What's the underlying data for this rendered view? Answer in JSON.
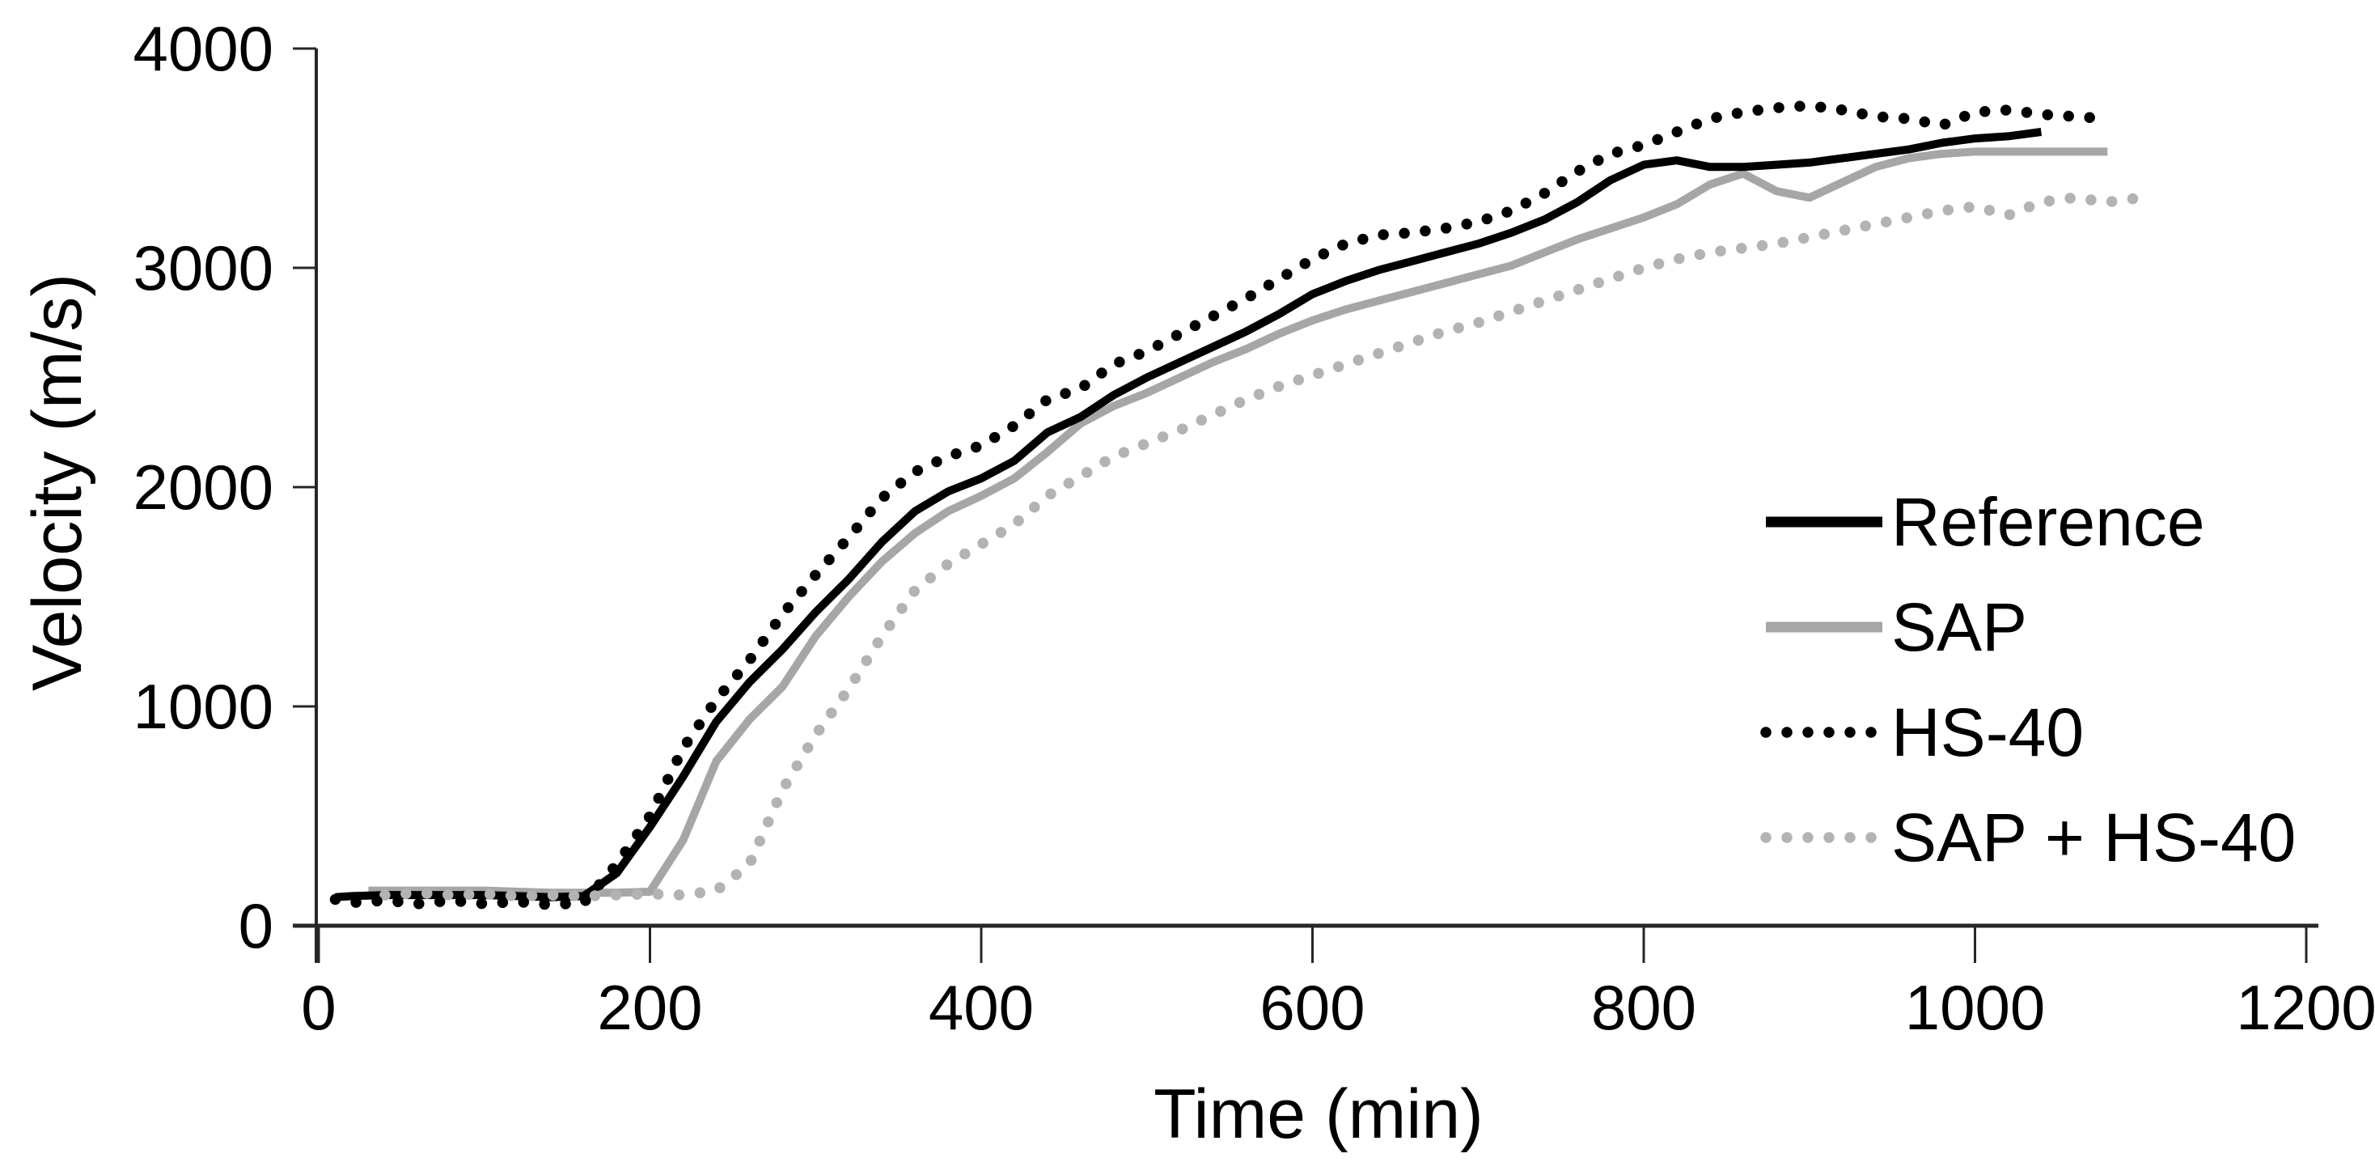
{
  "figure": {
    "background_color": "#ffffff",
    "axis_color": "#262626",
    "text_color": "#000000"
  },
  "chart_data": {
    "type": "line",
    "title": "",
    "xlabel": "Time (min)",
    "ylabel": "Velocity (m/s)",
    "xlim": [
      0,
      1200
    ],
    "ylim": [
      0,
      4000
    ],
    "xticks": [
      0,
      200,
      400,
      600,
      800,
      1000,
      1200
    ],
    "yticks": [
      0,
      1000,
      2000,
      3000,
      4000
    ],
    "grid": false,
    "legend_position": "right-inside",
    "series": [
      {
        "name": "Reference",
        "color": "#000000",
        "line_style": "solid",
        "line_width": 10,
        "points": [
          [
            10,
            130
          ],
          [
            20,
            135
          ],
          [
            40,
            140
          ],
          [
            60,
            140
          ],
          [
            80,
            140
          ],
          [
            100,
            140
          ],
          [
            120,
            135
          ],
          [
            140,
            130
          ],
          [
            160,
            135
          ],
          [
            180,
            240
          ],
          [
            200,
            450
          ],
          [
            220,
            680
          ],
          [
            240,
            930
          ],
          [
            260,
            1110
          ],
          [
            280,
            1260
          ],
          [
            300,
            1430
          ],
          [
            320,
            1580
          ],
          [
            340,
            1750
          ],
          [
            360,
            1890
          ],
          [
            380,
            1980
          ],
          [
            400,
            2040
          ],
          [
            420,
            2120
          ],
          [
            440,
            2250
          ],
          [
            460,
            2320
          ],
          [
            480,
            2420
          ],
          [
            500,
            2500
          ],
          [
            520,
            2570
          ],
          [
            540,
            2640
          ],
          [
            560,
            2710
          ],
          [
            580,
            2790
          ],
          [
            600,
            2880
          ],
          [
            620,
            2940
          ],
          [
            640,
            2990
          ],
          [
            660,
            3030
          ],
          [
            680,
            3070
          ],
          [
            700,
            3110
          ],
          [
            720,
            3160
          ],
          [
            740,
            3220
          ],
          [
            760,
            3300
          ],
          [
            780,
            3400
          ],
          [
            800,
            3470
          ],
          [
            820,
            3490
          ],
          [
            840,
            3460
          ],
          [
            860,
            3460
          ],
          [
            880,
            3470
          ],
          [
            900,
            3480
          ],
          [
            920,
            3500
          ],
          [
            940,
            3520
          ],
          [
            960,
            3540
          ],
          [
            980,
            3570
          ],
          [
            1000,
            3590
          ],
          [
            1020,
            3600
          ],
          [
            1040,
            3620
          ]
        ]
      },
      {
        "name": "SAP",
        "color": "#a6a6a6",
        "line_style": "solid",
        "line_width": 10,
        "points": [
          [
            30,
            160
          ],
          [
            60,
            160
          ],
          [
            80,
            160
          ],
          [
            100,
            160
          ],
          [
            120,
            155
          ],
          [
            140,
            150
          ],
          [
            160,
            150
          ],
          [
            180,
            150
          ],
          [
            200,
            155
          ],
          [
            220,
            390
          ],
          [
            240,
            750
          ],
          [
            260,
            940
          ],
          [
            280,
            1090
          ],
          [
            300,
            1320
          ],
          [
            320,
            1500
          ],
          [
            340,
            1660
          ],
          [
            360,
            1790
          ],
          [
            380,
            1890
          ],
          [
            400,
            1960
          ],
          [
            420,
            2040
          ],
          [
            440,
            2160
          ],
          [
            460,
            2290
          ],
          [
            480,
            2370
          ],
          [
            500,
            2430
          ],
          [
            520,
            2500
          ],
          [
            540,
            2570
          ],
          [
            560,
            2630
          ],
          [
            580,
            2700
          ],
          [
            600,
            2760
          ],
          [
            620,
            2810
          ],
          [
            640,
            2850
          ],
          [
            660,
            2890
          ],
          [
            680,
            2930
          ],
          [
            700,
            2970
          ],
          [
            720,
            3010
          ],
          [
            740,
            3070
          ],
          [
            760,
            3130
          ],
          [
            780,
            3180
          ],
          [
            800,
            3230
          ],
          [
            820,
            3290
          ],
          [
            840,
            3380
          ],
          [
            860,
            3430
          ],
          [
            880,
            3350
          ],
          [
            900,
            3320
          ],
          [
            920,
            3390
          ],
          [
            940,
            3460
          ],
          [
            960,
            3500
          ],
          [
            980,
            3520
          ],
          [
            1000,
            3530
          ],
          [
            1020,
            3530
          ],
          [
            1040,
            3530
          ],
          [
            1060,
            3530
          ],
          [
            1080,
            3530
          ]
        ]
      },
      {
        "name": "HS-40",
        "color": "#000000",
        "line_style": "dotted",
        "dot_size": 13.5,
        "dot_spacing": 26,
        "points": [
          [
            10,
            120
          ],
          [
            20,
            105
          ],
          [
            40,
            115
          ],
          [
            60,
            100
          ],
          [
            80,
            115
          ],
          [
            100,
            100
          ],
          [
            120,
            110
          ],
          [
            140,
            95
          ],
          [
            160,
            105
          ],
          [
            180,
            280
          ],
          [
            200,
            500
          ],
          [
            220,
            810
          ],
          [
            240,
            1030
          ],
          [
            260,
            1210
          ],
          [
            280,
            1420
          ],
          [
            300,
            1600
          ],
          [
            320,
            1770
          ],
          [
            340,
            1950
          ],
          [
            360,
            2070
          ],
          [
            380,
            2140
          ],
          [
            400,
            2190
          ],
          [
            420,
            2280
          ],
          [
            440,
            2400
          ],
          [
            460,
            2450
          ],
          [
            480,
            2560
          ],
          [
            500,
            2620
          ],
          [
            520,
            2700
          ],
          [
            540,
            2780
          ],
          [
            560,
            2860
          ],
          [
            580,
            2950
          ],
          [
            600,
            3040
          ],
          [
            620,
            3110
          ],
          [
            640,
            3150
          ],
          [
            660,
            3160
          ],
          [
            680,
            3180
          ],
          [
            700,
            3210
          ],
          [
            720,
            3260
          ],
          [
            740,
            3340
          ],
          [
            760,
            3440
          ],
          [
            780,
            3520
          ],
          [
            800,
            3560
          ],
          [
            820,
            3620
          ],
          [
            840,
            3680
          ],
          [
            860,
            3710
          ],
          [
            880,
            3730
          ],
          [
            900,
            3740
          ],
          [
            920,
            3720
          ],
          [
            940,
            3690
          ],
          [
            960,
            3680
          ],
          [
            980,
            3650
          ],
          [
            1000,
            3710
          ],
          [
            1020,
            3720
          ],
          [
            1040,
            3700
          ],
          [
            1060,
            3690
          ],
          [
            1080,
            3680
          ]
        ]
      },
      {
        "name": "SAP + HS-40",
        "color": "#b3b3b3",
        "line_style": "dotted",
        "dot_size": 13.5,
        "dot_spacing": 26,
        "points": [
          [
            40,
            140
          ],
          [
            60,
            150
          ],
          [
            80,
            140
          ],
          [
            100,
            145
          ],
          [
            120,
            135
          ],
          [
            140,
            140
          ],
          [
            160,
            135
          ],
          [
            180,
            140
          ],
          [
            200,
            145
          ],
          [
            220,
            140
          ],
          [
            240,
            160
          ],
          [
            260,
            280
          ],
          [
            280,
            620
          ],
          [
            300,
            870
          ],
          [
            320,
            1080
          ],
          [
            340,
            1320
          ],
          [
            360,
            1530
          ],
          [
            380,
            1650
          ],
          [
            400,
            1740
          ],
          [
            420,
            1830
          ],
          [
            440,
            1960
          ],
          [
            460,
            2050
          ],
          [
            480,
            2140
          ],
          [
            500,
            2200
          ],
          [
            520,
            2260
          ],
          [
            540,
            2330
          ],
          [
            560,
            2400
          ],
          [
            580,
            2460
          ],
          [
            600,
            2510
          ],
          [
            620,
            2560
          ],
          [
            640,
            2610
          ],
          [
            660,
            2660
          ],
          [
            680,
            2710
          ],
          [
            700,
            2750
          ],
          [
            720,
            2800
          ],
          [
            740,
            2850
          ],
          [
            760,
            2900
          ],
          [
            780,
            2950
          ],
          [
            800,
            3000
          ],
          [
            820,
            3040
          ],
          [
            840,
            3070
          ],
          [
            860,
            3090
          ],
          [
            880,
            3110
          ],
          [
            900,
            3140
          ],
          [
            920,
            3170
          ],
          [
            940,
            3200
          ],
          [
            960,
            3230
          ],
          [
            980,
            3260
          ],
          [
            1000,
            3280
          ],
          [
            1020,
            3240
          ],
          [
            1040,
            3300
          ],
          [
            1060,
            3320
          ],
          [
            1080,
            3300
          ],
          [
            1100,
            3320
          ]
        ]
      }
    ]
  }
}
